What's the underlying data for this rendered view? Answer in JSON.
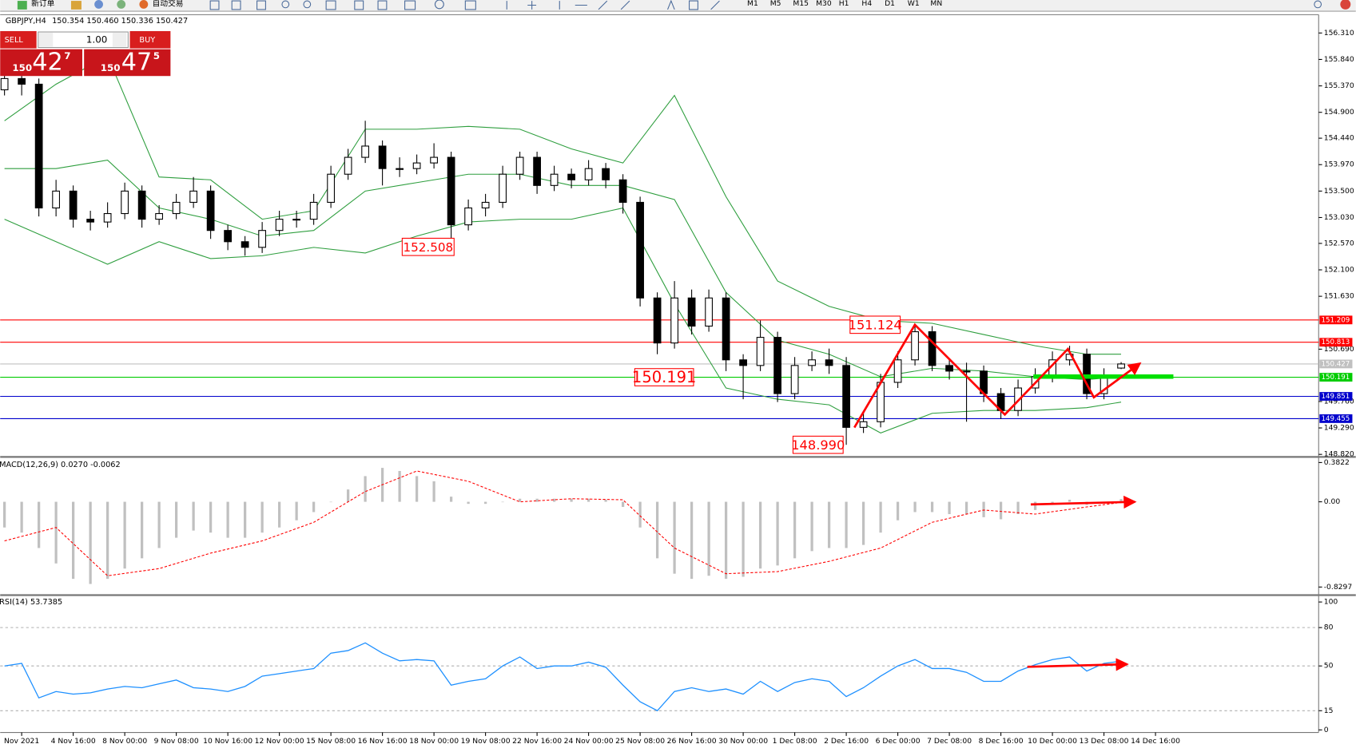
{
  "toolbar": {
    "new_order": "新订单",
    "auto_trading": "自动交易",
    "timeframes": [
      "M1",
      "M5",
      "M15",
      "M30",
      "H1",
      "H4",
      "D1",
      "W1",
      "MN"
    ]
  },
  "trade_panel": {
    "sell": "SELL",
    "buy": "BUY",
    "lots": "1.00",
    "bid_big": "150",
    "bid_main": "42",
    "bid_small": "7",
    "ask_big": "150",
    "ask_main": "47",
    "ask_small": "5"
  },
  "chart_data": {
    "type": "candlestick",
    "title": "GBPJPY,H4",
    "subtitle": "150.354 150.460 150.336 150.427",
    "categories": [
      null,
      "Nov 2021",
      null,
      null,
      "4 Nov 16:00",
      null,
      null,
      "8 Nov 00:00",
      null,
      null,
      "9 Nov 08:00",
      null,
      null,
      "10 Nov 16:00",
      null,
      null,
      "12 Nov 00:00",
      null,
      null,
      "15 Nov 08:00",
      null,
      null,
      "16 Nov 16:00",
      null,
      null,
      "18 Nov 00:00",
      null,
      null,
      "19 Nov 08:00",
      null,
      null,
      "22 Nov 16:00",
      null,
      null,
      "24 Nov 00:00",
      null,
      null,
      "25 Nov 08:00",
      null,
      null,
      "26 Nov 16:00",
      null,
      null,
      "30 Nov 00:00",
      null,
      null,
      "1 Dec 08:00",
      null,
      null,
      "2 Dec 16:00",
      null,
      null,
      "6 Dec 00:00",
      null,
      null,
      "7 Dec 08:00",
      null,
      null,
      "8 Dec 16:00",
      null,
      null,
      "10 Dec 00:00",
      null,
      null,
      "13 Dec 08:00",
      null,
      null,
      "14 Dec 16:00"
    ],
    "candles": [
      [
        155.3,
        155.65,
        155.2,
        155.5
      ],
      [
        155.5,
        155.6,
        155.2,
        155.4
      ],
      [
        155.4,
        155.5,
        153.05,
        153.2
      ],
      [
        153.2,
        153.7,
        153.05,
        153.5
      ],
      [
        153.5,
        153.6,
        152.85,
        153.0
      ],
      [
        153.0,
        153.15,
        152.8,
        152.95
      ],
      [
        152.95,
        153.3,
        152.85,
        153.1
      ],
      [
        153.1,
        153.65,
        153.0,
        153.5
      ],
      [
        153.5,
        153.6,
        152.85,
        153.0
      ],
      [
        153.0,
        153.25,
        152.9,
        153.1
      ],
      [
        153.1,
        153.45,
        153.0,
        153.3
      ],
      [
        153.3,
        153.75,
        153.2,
        153.5
      ],
      [
        153.5,
        153.6,
        152.65,
        152.8
      ],
      [
        152.8,
        152.9,
        152.45,
        152.6
      ],
      [
        152.6,
        152.7,
        152.35,
        152.5
      ],
      [
        152.5,
        152.95,
        152.4,
        152.8
      ],
      [
        152.8,
        153.15,
        152.7,
        153.0
      ],
      [
        153.0,
        153.15,
        152.85,
        153.0
      ],
      [
        153.0,
        153.45,
        152.9,
        153.3
      ],
      [
        153.3,
        153.95,
        153.2,
        153.8
      ],
      [
        153.8,
        154.25,
        153.7,
        154.1
      ],
      [
        154.1,
        154.75,
        154.0,
        154.3
      ],
      [
        154.3,
        154.4,
        153.6,
        153.9
      ],
      [
        153.9,
        154.1,
        153.75,
        153.9
      ],
      [
        153.9,
        154.15,
        153.8,
        154.0
      ],
      [
        154.0,
        154.35,
        153.9,
        154.1
      ],
      [
        154.1,
        154.2,
        152.508,
        152.9
      ],
      [
        152.9,
        153.35,
        152.8,
        153.2
      ],
      [
        153.2,
        153.45,
        153.05,
        153.3
      ],
      [
        153.3,
        153.95,
        153.2,
        153.8
      ],
      [
        153.8,
        154.2,
        153.7,
        154.1
      ],
      [
        154.1,
        154.2,
        153.45,
        153.6
      ],
      [
        153.6,
        153.95,
        153.5,
        153.8
      ],
      [
        153.8,
        153.9,
        153.55,
        153.7
      ],
      [
        153.7,
        154.05,
        153.6,
        153.9
      ],
      [
        153.9,
        154.0,
        153.55,
        153.7
      ],
      [
        153.7,
        153.8,
        153.1,
        153.3
      ],
      [
        153.3,
        153.4,
        151.45,
        151.6
      ],
      [
        151.6,
        151.7,
        150.6,
        150.8
      ],
      [
        150.8,
        151.9,
        150.7,
        151.6
      ],
      [
        151.6,
        151.75,
        150.95,
        151.1
      ],
      [
        151.1,
        151.75,
        151.0,
        151.6
      ],
      [
        151.6,
        151.7,
        150.3,
        150.5
      ],
      [
        150.5,
        150.6,
        149.8,
        150.4
      ],
      [
        150.4,
        151.2,
        150.3,
        150.9
      ],
      [
        150.9,
        151.0,
        149.75,
        149.9
      ],
      [
        149.9,
        150.55,
        149.8,
        150.4
      ],
      [
        150.4,
        150.65,
        150.3,
        150.5
      ],
      [
        150.5,
        150.7,
        150.25,
        150.4
      ],
      [
        150.4,
        150.55,
        148.99,
        149.3
      ],
      [
        149.3,
        149.55,
        149.2,
        149.4
      ],
      [
        149.4,
        150.25,
        149.3,
        150.1
      ],
      [
        150.1,
        150.65,
        150.0,
        150.5
      ],
      [
        150.5,
        151.124,
        150.4,
        151.0
      ],
      [
        151.0,
        151.1,
        150.3,
        150.4
      ],
      [
        150.4,
        150.5,
        150.15,
        150.3
      ],
      [
        150.3,
        150.45,
        149.4,
        150.3
      ],
      [
        150.3,
        150.4,
        149.75,
        149.9
      ],
      [
        149.9,
        150.0,
        149.45,
        149.6
      ],
      [
        149.6,
        150.15,
        149.5,
        150.0
      ],
      [
        150.0,
        150.35,
        149.9,
        150.2
      ],
      [
        150.2,
        150.65,
        150.1,
        150.5
      ],
      [
        150.5,
        150.75,
        150.4,
        150.6
      ],
      [
        150.6,
        150.7,
        149.8,
        149.9
      ],
      [
        149.9,
        150.35,
        149.8,
        150.2
      ],
      [
        150.354,
        150.46,
        150.336,
        150.427
      ],
      null,
      null
    ],
    "ylim": [
      148.79,
      156.62
    ],
    "yticks": [
      {
        "value": 156.31,
        "label": "156.310"
      },
      {
        "value": 155.84,
        "label": "155.840"
      },
      {
        "value": 155.37,
        "label": "155.370"
      },
      {
        "value": 154.9,
        "label": "154.900"
      },
      {
        "value": 154.44,
        "label": "154.440"
      },
      {
        "value": 153.97,
        "label": "153.970"
      },
      {
        "value": 153.5,
        "label": "153.500"
      },
      {
        "value": 153.03,
        "label": "153.030"
      },
      {
        "value": 152.57,
        "label": "152.570"
      },
      {
        "value": 152.1,
        "label": "152.100"
      },
      {
        "value": 151.63,
        "label": "151.630"
      },
      {
        "value": 150.69,
        "label": "150.690"
      },
      {
        "value": 149.76,
        "label": "149.760"
      },
      {
        "value": 149.29,
        "label": "149.290"
      },
      {
        "value": 148.82,
        "label": "148.820"
      }
    ],
    "bands": [
      {
        "color": "#2e9e3e",
        "x": [
          0,
          3,
          6,
          9,
          12,
          15,
          18,
          21,
          24,
          27,
          30,
          33,
          36,
          39,
          42,
          45,
          48,
          51,
          54,
          57,
          60,
          63,
          65
        ],
        "values": [
          154.75,
          155.4,
          155.9,
          153.75,
          153.7,
          153.0,
          153.15,
          154.6,
          154.6,
          154.65,
          154.6,
          154.25,
          154.0,
          155.2,
          153.4,
          151.9,
          151.45,
          151.2,
          151.15,
          150.95,
          150.75,
          150.6,
          150.6
        ]
      },
      {
        "color": "#2e9e3e",
        "x": [
          0,
          3,
          6,
          9,
          12,
          15,
          18,
          21,
          24,
          27,
          30,
          33,
          36,
          39,
          42,
          45,
          48,
          51,
          54,
          57,
          60,
          63,
          65
        ],
        "values": [
          153.9,
          153.9,
          154.05,
          153.2,
          153.0,
          152.7,
          152.8,
          153.5,
          153.65,
          153.8,
          153.8,
          153.6,
          153.6,
          153.35,
          151.7,
          150.85,
          150.6,
          150.2,
          150.35,
          150.3,
          150.2,
          150.15,
          150.2
        ]
      },
      {
        "color": "#2e9e3e",
        "x": [
          0,
          3,
          6,
          9,
          12,
          15,
          18,
          21,
          24,
          27,
          30,
          33,
          36,
          39,
          42,
          45,
          48,
          51,
          54,
          57,
          60,
          63,
          65
        ],
        "values": [
          153.0,
          152.6,
          152.2,
          152.6,
          152.3,
          152.35,
          152.5,
          152.4,
          152.7,
          152.95,
          153.0,
          153.0,
          153.2,
          151.5,
          150.0,
          149.8,
          149.7,
          149.2,
          149.55,
          149.6,
          149.6,
          149.65,
          149.75
        ]
      }
    ],
    "levels": [
      {
        "value": 151.209,
        "label": "151.209",
        "color": "#ff0000"
      },
      {
        "value": 150.813,
        "label": "150.813",
        "color": "#ff0000"
      },
      {
        "value": 150.427,
        "label": "150.427",
        "color": "#c0c0c0"
      },
      {
        "value": 150.191,
        "label": "150.191",
        "color": "#00cc00"
      },
      {
        "value": 149.851,
        "label": "149.851",
        "color": "#0000cc"
      },
      {
        "value": 149.455,
        "label": "149.455",
        "color": "#0000cc"
      }
    ],
    "annotations": [
      {
        "value": 152.508,
        "label": "152.508"
      },
      {
        "value": 150.191,
        "label": "150.191"
      },
      {
        "value": 151.124,
        "label": "151.124"
      },
      {
        "value": 148.99,
        "label": "148.990"
      }
    ],
    "macd": {
      "type": "bar",
      "title": "MACD(12,26,9) 0.0270 -0.0062",
      "color": "#c0c0c0",
      "ylim": [
        -0.9,
        0.42
      ],
      "yticks": [
        0.3822,
        {
          "value": 0,
          "label": "0.00"
        },
        -0.8297
      ],
      "values": [
        -0.25,
        -0.3,
        -0.45,
        -0.6,
        -0.75,
        -0.8,
        -0.75,
        -0.65,
        -0.55,
        -0.45,
        -0.35,
        -0.28,
        -0.3,
        -0.35,
        -0.35,
        -0.3,
        -0.25,
        -0.18,
        -0.1,
        0.0,
        0.12,
        0.25,
        0.33,
        0.3,
        0.25,
        0.2,
        0.05,
        -0.02,
        -0.02,
        0.0,
        0.03,
        0.03,
        0.03,
        0.03,
        0.03,
        0.02,
        -0.05,
        -0.25,
        -0.55,
        -0.7,
        -0.75,
        -0.72,
        -0.75,
        -0.73,
        -0.65,
        -0.62,
        -0.55,
        -0.48,
        -0.45,
        -0.45,
        -0.42,
        -0.3,
        -0.18,
        -0.1,
        -0.1,
        -0.12,
        -0.12,
        -0.15,
        -0.17,
        -0.12,
        -0.08,
        -0.02,
        0.02,
        -0.03,
        -0.01,
        0.027,
        null,
        null
      ],
      "signal": {
        "color": "#ff0000",
        "x": [
          0,
          3,
          6,
          9,
          12,
          15,
          18,
          21,
          24,
          27,
          30,
          33,
          36,
          39,
          42,
          45,
          48,
          51,
          54,
          57,
          60,
          63,
          65
        ],
        "values": [
          -0.38,
          -0.25,
          -0.72,
          -0.65,
          -0.5,
          -0.38,
          -0.2,
          0.1,
          0.3,
          0.2,
          0.0,
          0.03,
          0.02,
          -0.45,
          -0.7,
          -0.68,
          -0.58,
          -0.45,
          -0.2,
          -0.08,
          -0.12,
          -0.05,
          -0.0062
        ]
      }
    },
    "rsi": {
      "type": "line",
      "title": "RSI(14) 53.7385",
      "color": "#1e90ff",
      "ylim": [
        -2,
        104.7
      ],
      "yticks": [
        100,
        80,
        50,
        15,
        0
      ],
      "values": [
        50,
        52,
        25,
        30,
        28,
        29,
        32,
        34,
        33,
        36,
        39,
        33,
        32,
        30,
        34,
        42,
        44,
        46,
        48,
        60,
        62,
        68,
        60,
        54,
        55,
        54,
        35,
        38,
        40,
        50,
        57,
        48,
        50,
        50,
        53,
        49,
        35,
        22,
        15,
        30,
        33,
        30,
        32,
        28,
        38,
        30,
        37,
        40,
        38,
        26,
        33,
        42,
        50,
        55,
        48,
        48,
        45,
        38,
        38,
        46,
        51,
        55,
        57,
        46,
        52,
        53.7385,
        null,
        null
      ]
    }
  }
}
